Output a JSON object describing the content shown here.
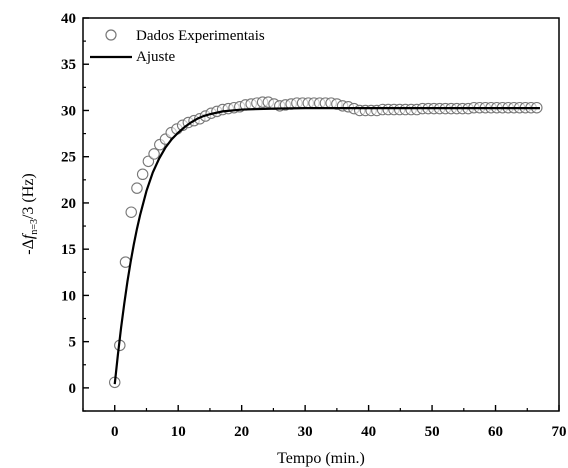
{
  "chart_data": {
    "type": "scatter",
    "xlabel": "Tempo (min.)",
    "ylabel": {
      "prefix": "-Δ",
      "var": "f",
      "sub": "n=3",
      "suffix": "/3 (Hz)"
    },
    "xlim": [
      -5,
      70
    ],
    "ylim": [
      -2.5,
      40
    ],
    "xticks": [
      "0",
      "10",
      "20",
      "30",
      "40",
      "50",
      "60",
      "70"
    ],
    "yticks": [
      "0",
      "5",
      "10",
      "15",
      "20",
      "25",
      "30",
      "35",
      "40"
    ],
    "grid": false,
    "legend": {
      "position": "top-left"
    },
    "series": [
      {
        "name": "Dados Experimentais",
        "kind": "markers",
        "marker": "open-circle",
        "color": "#777777",
        "points": [
          [
            0,
            0.6
          ],
          [
            0.8,
            4.6
          ],
          [
            1.7,
            13.6
          ],
          [
            2.6,
            19.0
          ],
          [
            3.5,
            21.6
          ],
          [
            4.4,
            23.1
          ],
          [
            5.3,
            24.5
          ],
          [
            6.2,
            25.3
          ],
          [
            7.1,
            26.3
          ],
          [
            8.0,
            26.9
          ],
          [
            8.9,
            27.6
          ],
          [
            9.8,
            28.0
          ],
          [
            10.7,
            28.4
          ],
          [
            11.6,
            28.7
          ],
          [
            12.5,
            28.9
          ],
          [
            13.4,
            29.1
          ],
          [
            14.3,
            29.4
          ],
          [
            15.2,
            29.7
          ],
          [
            16.1,
            29.9
          ],
          [
            17.0,
            30.1
          ],
          [
            17.9,
            30.2
          ],
          [
            18.8,
            30.3
          ],
          [
            19.7,
            30.4
          ],
          [
            20.6,
            30.6
          ],
          [
            21.5,
            30.7
          ],
          [
            22.4,
            30.8
          ],
          [
            23.3,
            30.9
          ],
          [
            24.2,
            30.9
          ],
          [
            25.1,
            30.7
          ],
          [
            26.0,
            30.5
          ],
          [
            26.9,
            30.6
          ],
          [
            27.8,
            30.7
          ],
          [
            28.7,
            30.8
          ],
          [
            29.6,
            30.8
          ],
          [
            30.5,
            30.8
          ],
          [
            31.4,
            30.8
          ],
          [
            32.3,
            30.8
          ],
          [
            33.2,
            30.8
          ],
          [
            34.1,
            30.8
          ],
          [
            35.0,
            30.7
          ],
          [
            35.9,
            30.5
          ],
          [
            36.8,
            30.4
          ],
          [
            37.7,
            30.2
          ],
          [
            38.6,
            30.0
          ],
          [
            39.5,
            30.0
          ],
          [
            40.4,
            30.0
          ],
          [
            41.3,
            30.0
          ],
          [
            42.2,
            30.1
          ],
          [
            43.1,
            30.1
          ],
          [
            44.0,
            30.1
          ],
          [
            44.9,
            30.1
          ],
          [
            45.8,
            30.1
          ],
          [
            46.7,
            30.1
          ],
          [
            47.6,
            30.1
          ],
          [
            48.5,
            30.2
          ],
          [
            49.4,
            30.2
          ],
          [
            50.3,
            30.2
          ],
          [
            51.2,
            30.2
          ],
          [
            52.1,
            30.2
          ],
          [
            53.0,
            30.2
          ],
          [
            53.9,
            30.2
          ],
          [
            54.8,
            30.2
          ],
          [
            55.7,
            30.2
          ],
          [
            56.6,
            30.3
          ],
          [
            57.5,
            30.3
          ],
          [
            58.4,
            30.3
          ],
          [
            59.3,
            30.3
          ],
          [
            60.2,
            30.3
          ],
          [
            61.1,
            30.3
          ],
          [
            62.0,
            30.3
          ],
          [
            62.9,
            30.3
          ],
          [
            63.8,
            30.3
          ],
          [
            64.7,
            30.3
          ],
          [
            65.6,
            30.3
          ],
          [
            66.5,
            30.3
          ]
        ]
      },
      {
        "name": "Ajuste",
        "kind": "line",
        "color": "#000000",
        "points": [
          [
            0,
            0.4
          ],
          [
            0.5,
            3.6
          ],
          [
            1,
            6.5
          ],
          [
            1.5,
            9.1
          ],
          [
            2,
            11.5
          ],
          [
            2.5,
            13.6
          ],
          [
            3,
            15.5
          ],
          [
            3.5,
            17.2
          ],
          [
            4,
            18.7
          ],
          [
            5,
            21.3
          ],
          [
            6,
            23.3
          ],
          [
            7,
            24.8
          ],
          [
            8,
            26.0
          ],
          [
            9,
            26.9
          ],
          [
            10,
            27.6
          ],
          [
            11,
            28.2
          ],
          [
            12,
            28.7
          ],
          [
            13,
            29.1
          ],
          [
            14,
            29.4
          ],
          [
            15,
            29.6
          ],
          [
            17,
            29.9
          ],
          [
            20,
            30.1
          ],
          [
            25,
            30.2
          ],
          [
            30,
            30.25
          ],
          [
            40,
            30.25
          ],
          [
            50,
            30.25
          ],
          [
            60,
            30.25
          ],
          [
            67,
            30.25
          ]
        ]
      }
    ]
  }
}
